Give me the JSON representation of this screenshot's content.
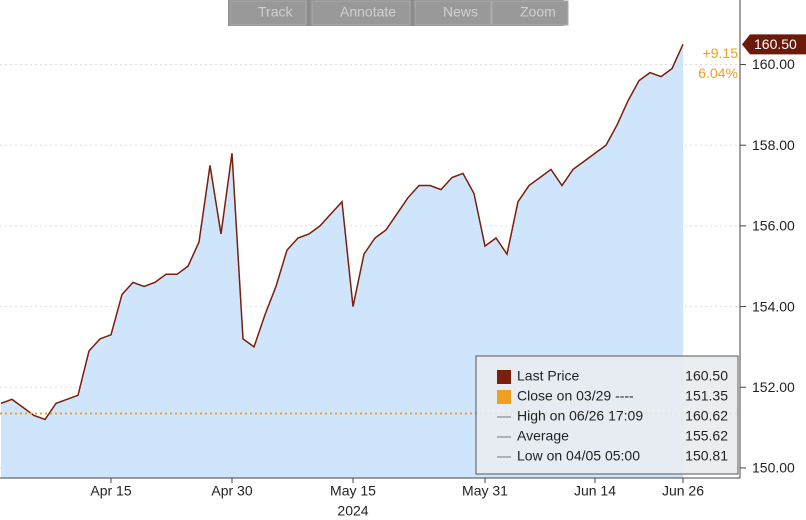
{
  "chart_data": {
    "type": "line",
    "series": [
      {
        "name": "Last Price",
        "color": "#7a1f0c",
        "area_color": "#cfe5fb",
        "values": [
          151.6,
          151.7,
          151.5,
          151.3,
          151.2,
          151.6,
          151.7,
          151.8,
          152.9,
          153.2,
          153.3,
          154.3,
          154.6,
          154.5,
          154.6,
          154.8,
          154.8,
          155.0,
          155.6,
          157.5,
          155.8,
          157.8,
          153.2,
          153.0,
          153.8,
          154.5,
          155.4,
          155.7,
          155.8,
          156.0,
          156.3,
          156.6,
          154.0,
          155.3,
          155.7,
          155.9,
          156.3,
          156.7,
          157.0,
          157.0,
          156.9,
          157.2,
          157.3,
          156.8,
          155.5,
          155.7,
          155.3,
          156.6,
          157.0,
          157.2,
          157.4,
          157.0,
          157.4,
          157.6,
          157.8,
          158.0,
          158.5,
          159.1,
          159.6,
          159.8,
          159.7,
          159.9,
          160.5
        ]
      }
    ],
    "categories": [
      null,
      null,
      null,
      null,
      null,
      null,
      null,
      null,
      null,
      null,
      "Apr 15",
      null,
      null,
      null,
      null,
      null,
      null,
      null,
      null,
      null,
      null,
      "Apr 30",
      null,
      null,
      null,
      null,
      null,
      null,
      null,
      null,
      null,
      null,
      "May 15",
      null,
      null,
      null,
      null,
      null,
      null,
      null,
      null,
      null,
      null,
      null,
      "May 31",
      null,
      null,
      null,
      null,
      null,
      null,
      null,
      null,
      null,
      "Jun 14",
      null,
      null,
      null,
      null,
      null,
      null,
      null,
      "Jun 26"
    ],
    "x_year": "2024",
    "ylim": [
      149.75,
      161.6
    ],
    "yticks": [
      {
        "value": 150,
        "label": "150.00"
      },
      {
        "value": 152,
        "label": "152.00"
      },
      {
        "value": 154,
        "label": "154.00"
      },
      {
        "value": 156,
        "label": "156.00"
      },
      {
        "value": 158,
        "label": "158.00"
      },
      {
        "value": 160,
        "label": "160.00"
      }
    ],
    "reference": {
      "value": 151.35,
      "color": "#f0a020"
    },
    "last_tag": "160.50",
    "change": "+9.15",
    "change_pct": "6.04%",
    "stats": {
      "names": [
        "Last Price",
        "Close on 03/29 ----",
        "High on 06/26 17:09",
        "Average",
        "Low on 04/05 05:00"
      ],
      "values": [
        160.5,
        151.35,
        160.62,
        155.62,
        150.81
      ],
      "value_labels": [
        "160.50",
        "151.35",
        "160.62",
        "155.62",
        "150.81"
      ]
    }
  },
  "toolbar": [
    "Track",
    "Annotate",
    "News",
    "Zoom"
  ]
}
